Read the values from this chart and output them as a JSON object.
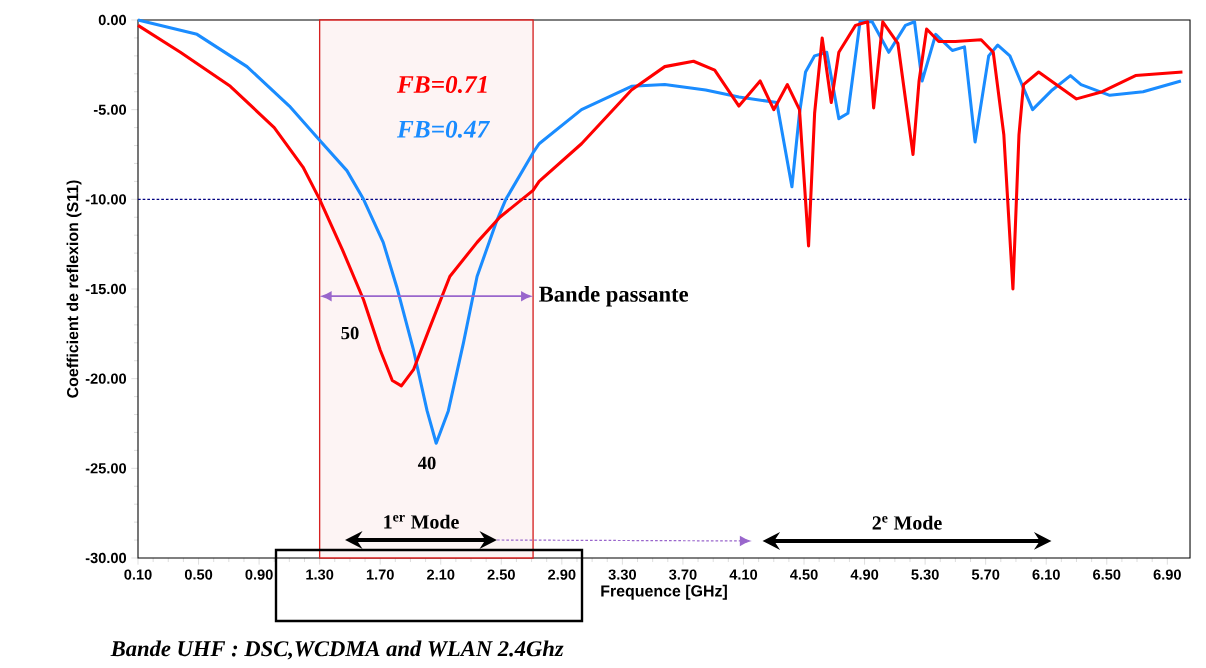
{
  "chart_data": {
    "type": "line",
    "xlabel": "Frequence [GHz]",
    "ylabel": "Coefficient de reflexion (S11)",
    "xlim": [
      0.1,
      7.05
    ],
    "ylim": [
      -30,
      0
    ],
    "xticks": [
      {
        "value": 0.1,
        "label": "0.10"
      },
      {
        "value": 0.5,
        "label": "0.50"
      },
      {
        "value": 0.9,
        "label": "0.90"
      },
      {
        "value": 1.3,
        "label": "1.30"
      },
      {
        "value": 1.7,
        "label": "1.70"
      },
      {
        "value": 2.1,
        "label": "2.10"
      },
      {
        "value": 2.5,
        "label": "2.50"
      },
      {
        "value": 2.9,
        "label": "2.90"
      },
      {
        "value": 3.3,
        "label": "3.30"
      },
      {
        "value": 3.7,
        "label": "3.70"
      },
      {
        "value": 4.1,
        "label": "4.10"
      },
      {
        "value": 4.5,
        "label": "4.50"
      },
      {
        "value": 4.9,
        "label": "4.90"
      },
      {
        "value": 5.3,
        "label": "5.30"
      },
      {
        "value": 5.7,
        "label": "5.70"
      },
      {
        "value": 6.1,
        "label": "6.10"
      },
      {
        "value": 6.5,
        "label": "6.50"
      },
      {
        "value": 6.9,
        "label": "6.90"
      }
    ],
    "yticks": [
      {
        "value": 0,
        "label": "0.00"
      },
      {
        "value": -5,
        "label": "-5.00"
      },
      {
        "value": -10,
        "label": "-10.00"
      },
      {
        "value": -15,
        "label": "-15.00"
      },
      {
        "value": -20,
        "label": "-20.00"
      },
      {
        "value": -25,
        "label": "-25.00"
      },
      {
        "value": -30,
        "label": "-30.00"
      }
    ],
    "grid": false,
    "legend": "top left",
    "line_style": "solid",
    "marker": "none",
    "series": [
      {
        "name": "FB=0.71",
        "color": "#ff0000",
        "x": [
          0.1,
          0.38,
          0.71,
          1.0,
          1.19,
          1.3,
          1.45,
          1.59,
          1.7,
          1.78,
          1.84,
          1.92,
          2.03,
          2.16,
          2.34,
          2.49,
          2.71,
          2.75,
          3.03,
          3.36,
          3.58,
          3.77,
          3.91,
          4.07,
          4.21,
          4.3,
          4.39,
          4.47,
          4.53,
          4.57,
          4.62,
          4.68,
          4.73,
          4.84,
          4.92,
          4.96,
          5.02,
          5.12,
          5.22,
          5.26,
          5.31,
          5.39,
          5.5,
          5.67,
          5.75,
          5.82,
          5.88,
          5.92,
          5.95,
          6.05,
          6.3,
          6.47,
          6.69,
          7.0
        ],
        "values": [
          -0.3,
          -1.8,
          -3.7,
          -6.0,
          -8.2,
          -10.0,
          -12.8,
          -15.6,
          -18.4,
          -20.1,
          -20.4,
          -19.5,
          -17.1,
          -14.3,
          -12.4,
          -11.0,
          -9.5,
          -9.0,
          -6.9,
          -3.9,
          -2.6,
          -2.3,
          -2.8,
          -4.8,
          -3.4,
          -5.0,
          -3.6,
          -5.0,
          -12.6,
          -5.2,
          -1.0,
          -4.6,
          -1.8,
          -0.3,
          -0.1,
          -4.9,
          -0.1,
          -1.3,
          -7.5,
          -3.4,
          -0.5,
          -1.2,
          -1.2,
          -1.1,
          -1.8,
          -6.4,
          -15.0,
          -6.4,
          -3.6,
          -2.9,
          -4.4,
          -4.0,
          -3.1,
          -2.9
        ]
      },
      {
        "name": "FB=0.47",
        "color": "#1a8cff",
        "x": [
          0.1,
          0.49,
          0.82,
          1.1,
          1.3,
          1.48,
          1.59,
          1.72,
          1.81,
          1.92,
          2.01,
          2.07,
          2.15,
          2.25,
          2.34,
          2.47,
          2.53,
          2.71,
          2.75,
          3.03,
          3.36,
          3.58,
          3.85,
          4.07,
          4.32,
          4.42,
          4.47,
          4.51,
          4.57,
          4.65,
          4.73,
          4.79,
          4.87,
          4.95,
          5.06,
          5.17,
          5.23,
          5.28,
          5.37,
          5.48,
          5.56,
          5.63,
          5.72,
          5.78,
          5.86,
          5.94,
          6.01,
          6.14,
          6.26,
          6.33,
          6.52,
          6.74,
          6.99
        ],
        "values": [
          0.0,
          -0.8,
          -2.6,
          -4.8,
          -6.7,
          -8.4,
          -10.0,
          -12.4,
          -14.9,
          -18.4,
          -21.8,
          -23.6,
          -21.8,
          -18.0,
          -14.3,
          -11.2,
          -10.0,
          -7.4,
          -6.9,
          -5.0,
          -3.7,
          -3.6,
          -3.9,
          -4.3,
          -4.6,
          -9.3,
          -5.2,
          -2.9,
          -2.0,
          -1.8,
          -5.5,
          -5.2,
          -0.1,
          -0.1,
          -1.8,
          -0.3,
          -0.1,
          -3.4,
          -0.8,
          -1.7,
          -1.5,
          -6.8,
          -2.0,
          -1.4,
          -2.0,
          -3.6,
          -5.0,
          -3.9,
          -3.1,
          -3.6,
          -4.2,
          -4.0,
          -3.4
        ]
      }
    ],
    "ref_lines": [
      {
        "axis": "y",
        "value": -10,
        "color": "#000080",
        "line_style": "dashed"
      }
    ],
    "bands": [
      {
        "axis": "x",
        "from": 1.3,
        "to": 2.71,
        "color": "#d62020"
      }
    ],
    "annotations": [
      {
        "text": "Bande passante",
        "x": 2.71,
        "y": -15.4
      },
      "50",
      "40",
      "1$^{er}$ Mode",
      "2$^{e}$ Mode",
      "Bande UHF  : DSC,WCDMA and WLAN 2.4Ghz"
    ]
  }
}
